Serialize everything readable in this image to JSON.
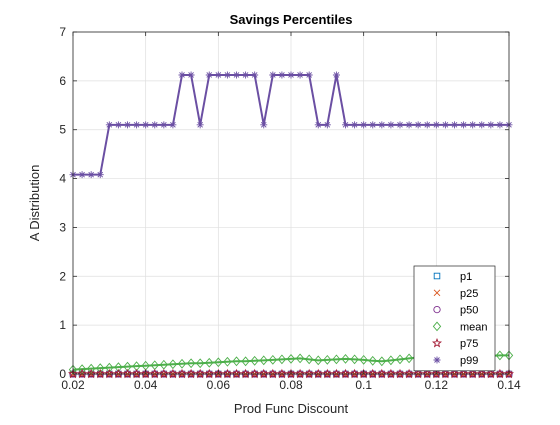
{
  "chart_data": {
    "type": "line",
    "title": "Savings Percentiles",
    "xlabel": "Prod Func Discount",
    "ylabel": "A Distribution",
    "xlim": [
      0.02,
      0.14
    ],
    "ylim": [
      0,
      7
    ],
    "grid": true,
    "legend_position": "bottom-right",
    "x_ticks": [
      0.02,
      0.04,
      0.06,
      0.08,
      0.1,
      0.12,
      0.14
    ],
    "x_tick_labels": [
      "0.02",
      "0.04",
      "0.06",
      "0.08",
      "0.1",
      "0.12",
      "0.14"
    ],
    "y_ticks": [
      0,
      1,
      2,
      3,
      4,
      5,
      6,
      7
    ],
    "y_tick_labels": [
      "0",
      "1",
      "2",
      "3",
      "4",
      "5",
      "6",
      "7"
    ],
    "x": [
      0.02,
      0.0225,
      0.025,
      0.0275,
      0.03,
      0.0325,
      0.035,
      0.0375,
      0.04,
      0.0425,
      0.045,
      0.0475,
      0.05,
      0.0525,
      0.055,
      0.0575,
      0.06,
      0.0625,
      0.065,
      0.0675,
      0.07,
      0.0725,
      0.075,
      0.0775,
      0.08,
      0.0825,
      0.085,
      0.0875,
      0.09,
      0.0925,
      0.095,
      0.0975,
      0.1,
      0.1025,
      0.105,
      0.1075,
      0.11,
      0.1125,
      0.115,
      0.1175,
      0.12,
      0.1225,
      0.125,
      0.1275,
      0.13,
      0.1325,
      0.135,
      0.1375,
      0.14
    ],
    "series": [
      {
        "name": "p1",
        "marker": "square",
        "color": "#0072bd",
        "values": [
          0,
          0,
          0,
          0,
          0,
          0,
          0,
          0,
          0,
          0,
          0,
          0,
          0,
          0,
          0,
          0,
          0,
          0,
          0,
          0,
          0,
          0,
          0,
          0,
          0,
          0,
          0,
          0,
          0,
          0,
          0,
          0,
          0,
          0,
          0,
          0,
          0,
          0,
          0,
          0,
          0,
          0,
          0,
          0,
          0,
          0,
          0,
          0,
          0
        ]
      },
      {
        "name": "p25",
        "marker": "x",
        "color": "#d95319",
        "values": [
          0,
          0,
          0,
          0,
          0,
          0,
          0,
          0,
          0,
          0,
          0,
          0,
          0,
          0,
          0,
          0,
          0,
          0,
          0,
          0,
          0,
          0,
          0,
          0,
          0,
          0,
          0,
          0,
          0,
          0,
          0,
          0,
          0,
          0,
          0,
          0,
          0,
          0,
          0,
          0,
          0,
          0,
          0,
          0,
          0,
          0,
          0,
          0,
          0
        ]
      },
      {
        "name": "p50",
        "marker": "circle",
        "color": "#7e2f8e",
        "values": [
          0,
          0,
          0,
          0,
          0,
          0,
          0,
          0,
          0,
          0,
          0,
          0,
          0,
          0,
          0,
          0,
          0,
          0,
          0,
          0,
          0,
          0,
          0,
          0,
          0,
          0,
          0,
          0,
          0,
          0,
          0,
          0,
          0,
          0,
          0,
          0,
          0,
          0,
          0,
          0,
          0,
          0,
          0,
          0,
          0,
          0,
          0,
          0,
          0
        ]
      },
      {
        "name": "mean",
        "marker": "diamond",
        "color": "#4daf4a",
        "values": [
          0.09,
          0.1,
          0.11,
          0.12,
          0.13,
          0.14,
          0.15,
          0.16,
          0.17,
          0.18,
          0.19,
          0.2,
          0.21,
          0.22,
          0.22,
          0.23,
          0.24,
          0.25,
          0.26,
          0.26,
          0.27,
          0.28,
          0.29,
          0.3,
          0.31,
          0.32,
          0.3,
          0.28,
          0.29,
          0.3,
          0.31,
          0.3,
          0.29,
          0.27,
          0.26,
          0.28,
          0.3,
          0.32,
          0.34,
          0.35,
          0.36,
          0.35,
          0.34,
          0.35,
          0.36,
          0.37,
          0.37,
          0.38,
          0.38
        ]
      },
      {
        "name": "p75",
        "marker": "pentagram",
        "color": "#a2142f",
        "values": [
          0,
          0,
          0,
          0,
          0,
          0,
          0,
          0,
          0,
          0,
          0,
          0,
          0,
          0,
          0,
          0,
          0,
          0,
          0,
          0,
          0,
          0,
          0,
          0,
          0,
          0,
          0,
          0,
          0,
          0,
          0,
          0,
          0,
          0,
          0,
          0,
          0,
          0,
          0,
          0,
          0,
          0,
          0,
          0,
          0,
          0,
          0,
          0,
          0
        ]
      },
      {
        "name": "p99",
        "marker": "asterisk",
        "color": "#6b4fa3",
        "values": [
          4.08,
          4.08,
          4.08,
          4.08,
          5.1,
          5.1,
          5.1,
          5.1,
          5.1,
          5.1,
          5.1,
          5.1,
          6.12,
          6.12,
          5.1,
          6.12,
          6.12,
          6.12,
          6.12,
          6.12,
          6.12,
          5.1,
          6.12,
          6.12,
          6.12,
          6.12,
          6.12,
          5.1,
          5.1,
          6.12,
          5.1,
          5.1,
          5.1,
          5.1,
          5.1,
          5.1,
          5.1,
          5.1,
          5.1,
          5.1,
          5.1,
          5.1,
          5.1,
          5.1,
          5.1,
          5.1,
          5.1,
          5.1,
          5.1
        ]
      }
    ]
  }
}
